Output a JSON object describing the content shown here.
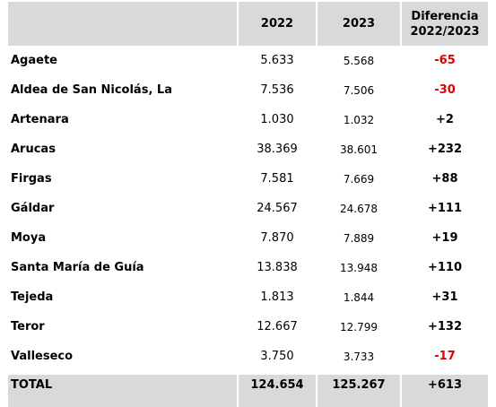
{
  "header": {
    "name": "",
    "year_2022": "2022",
    "year_2023": "2023",
    "diff_line1": "Diferencia",
    "diff_line2": "2022/2023"
  },
  "rows": [
    {
      "name": "Agaete",
      "v2022": "5.633",
      "v2023": "5.568",
      "diff": "-65"
    },
    {
      "name": "Aldea de San Nicolás, La",
      "v2022": "7.536",
      "v2023": "7.506",
      "diff": "-30"
    },
    {
      "name": "Artenara",
      "v2022": "1.030",
      "v2023": "1.032",
      "diff": "+2"
    },
    {
      "name": "Arucas",
      "v2022": "38.369",
      "v2023": "38.601",
      "diff": "+232"
    },
    {
      "name": "Firgas",
      "v2022": "7.581",
      "v2023": "7.669",
      "diff": "+88"
    },
    {
      "name": "Gáldar",
      "v2022": "24.567",
      "v2023": "24.678",
      "diff": "+111"
    },
    {
      "name": "Moya",
      "v2022": "7.870",
      "v2023": "7.889",
      "diff": "+19"
    },
    {
      "name": "Santa María de Guía",
      "v2022": "13.838",
      "v2023": "13.948",
      "diff": "+110"
    },
    {
      "name": "Tejeda",
      "v2022": "1.813",
      "v2023": "1.844",
      "diff": "+31"
    },
    {
      "name": "Teror",
      "v2022": "12.667",
      "v2023": "12.799",
      "diff": "+132"
    },
    {
      "name": "Valleseco",
      "v2022": "3.750",
      "v2023": "3.733",
      "diff": "-17"
    }
  ],
  "total": {
    "name": "TOTAL",
    "v2022": "124.654",
    "v2023": "125.267",
    "diff": "+613"
  },
  "colors": {
    "header_bg": "#d9d9d9",
    "negative": "#e00000",
    "text": "#000000"
  }
}
